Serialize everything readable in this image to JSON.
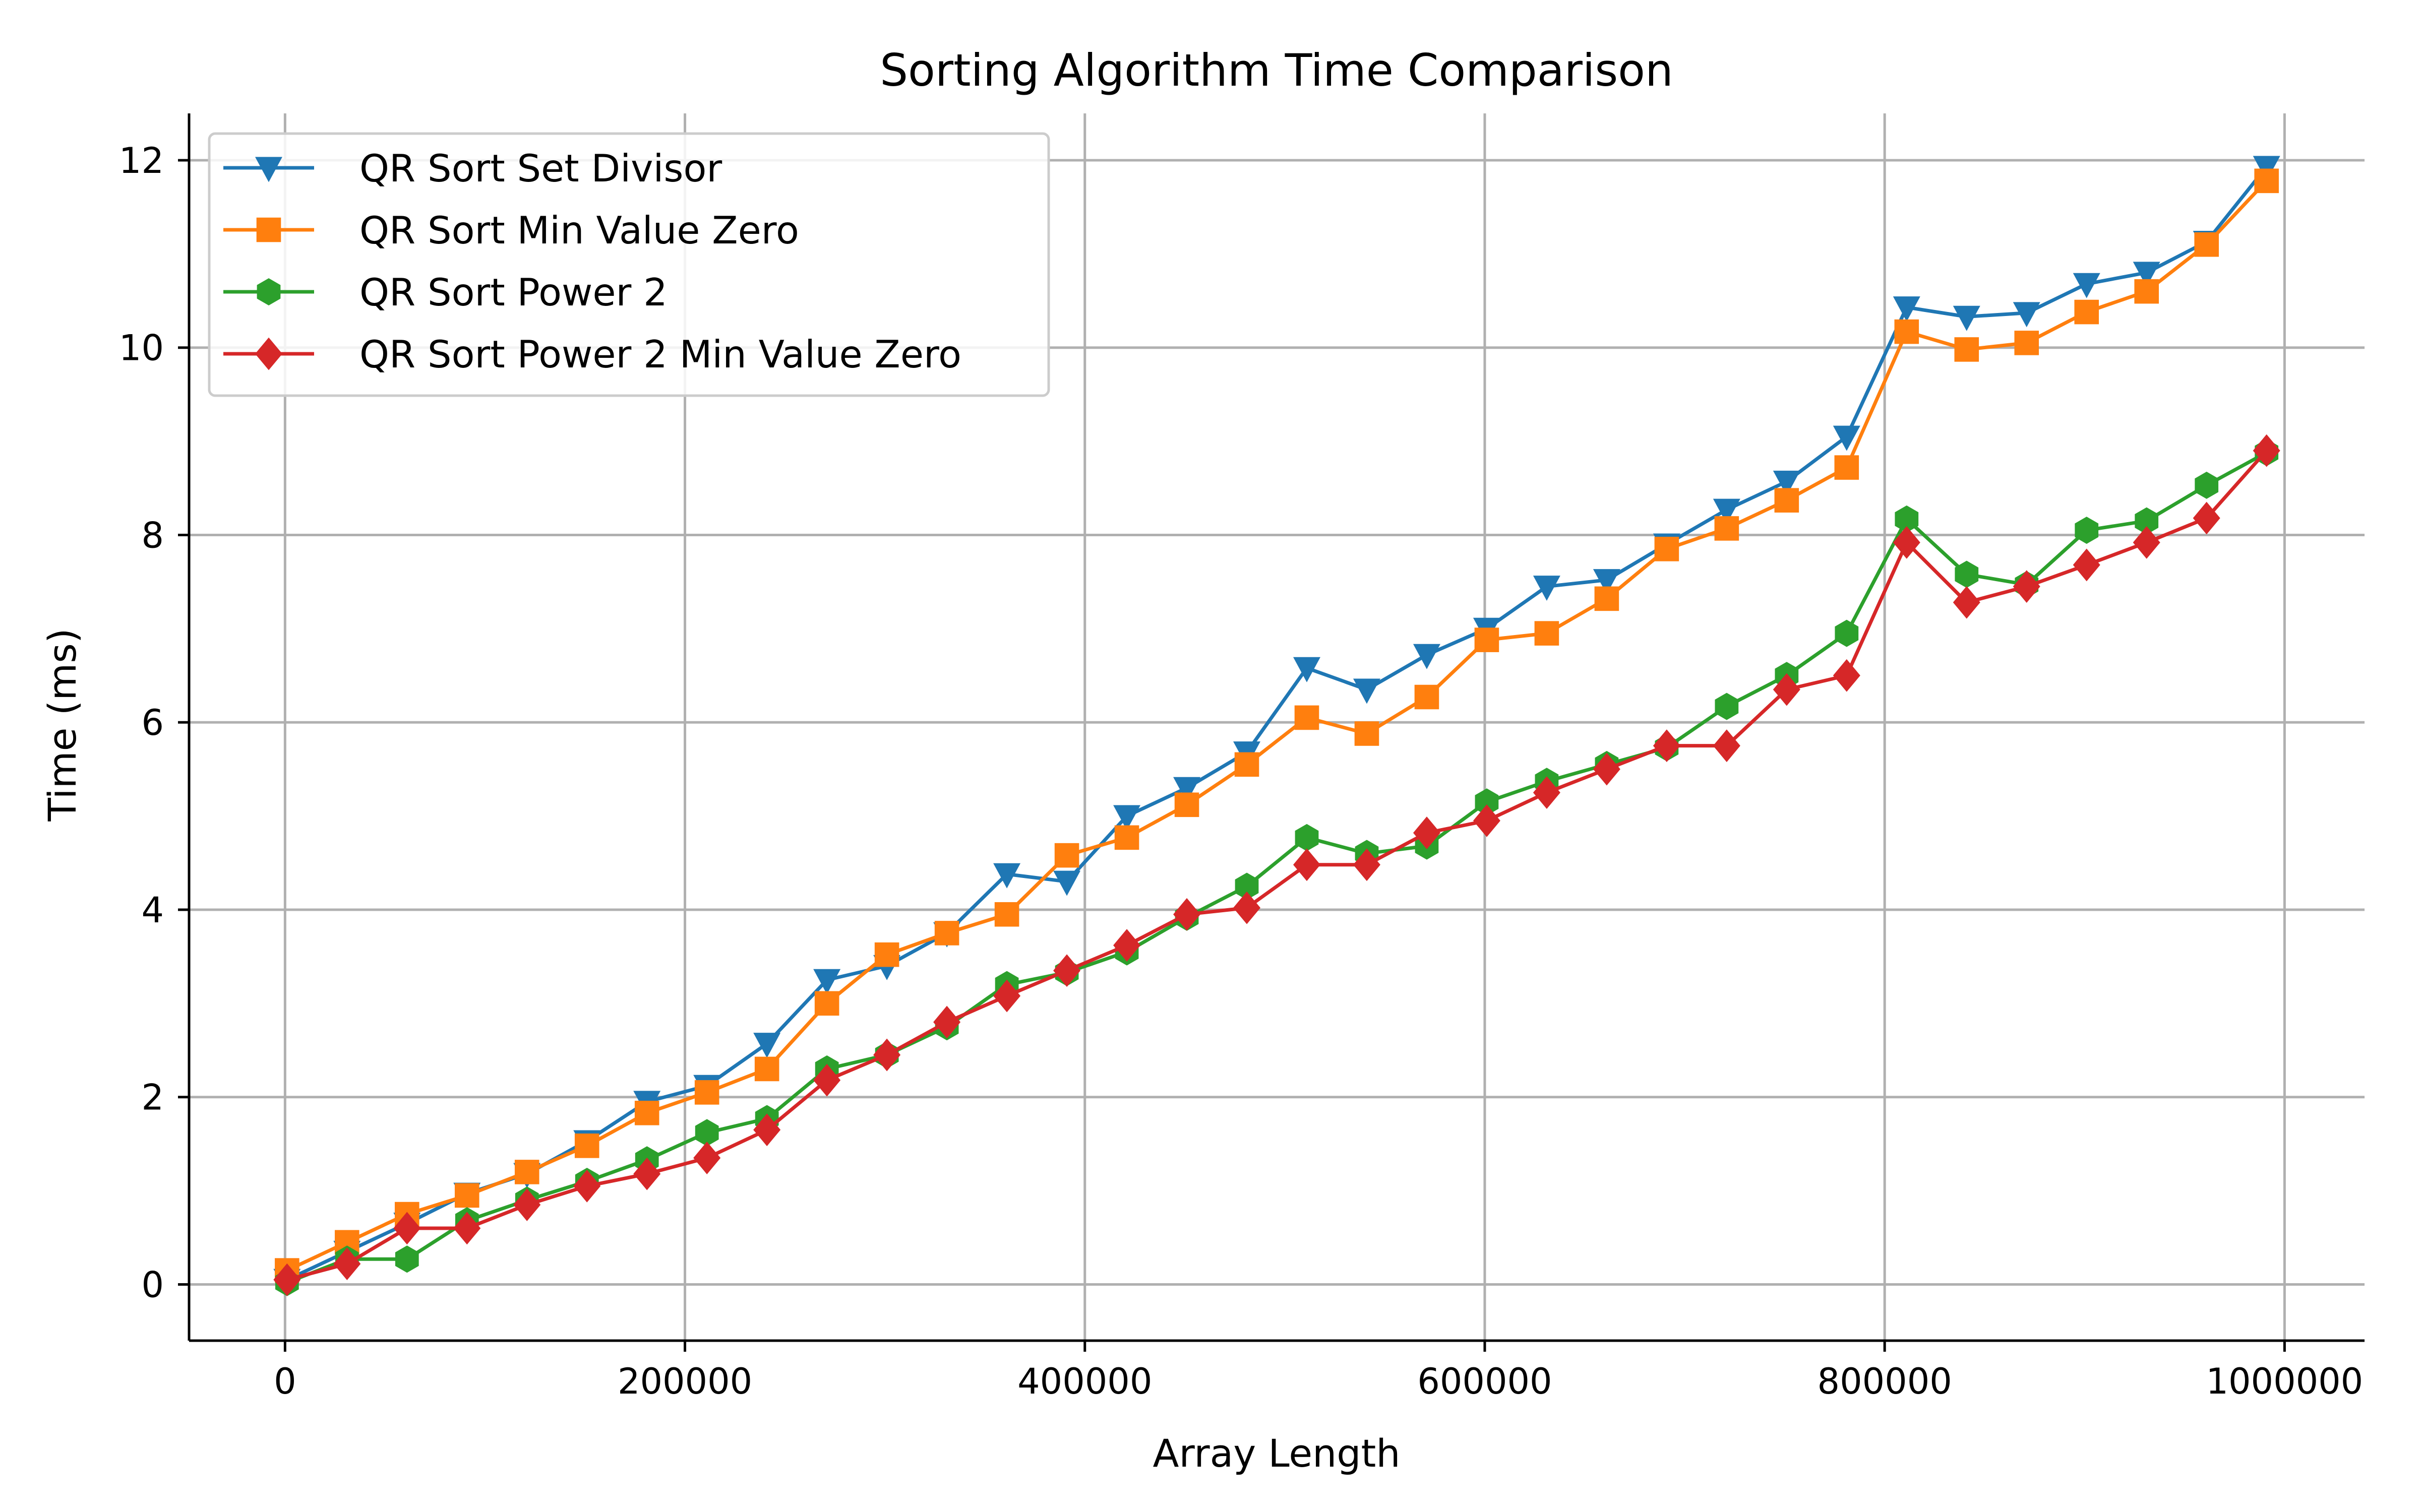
{
  "chart_data": {
    "type": "line",
    "title": "Sorting Algorithm Time Comparison",
    "xlabel": "Array Length",
    "ylabel": "Time (ms)",
    "xlim": [
      -48000,
      1040000
    ],
    "ylim": [
      -0.6,
      12.5
    ],
    "xticks": [
      0,
      200000,
      400000,
      600000,
      800000,
      1000000
    ],
    "xtick_labels": [
      "0",
      "200000",
      "400000",
      "600000",
      "800000",
      "1000000"
    ],
    "yticks": [
      0,
      2,
      4,
      6,
      8,
      10,
      12
    ],
    "ytick_labels": [
      "0",
      "2",
      "4",
      "6",
      "8",
      "10",
      "12"
    ],
    "grid": true,
    "legend_position": "upper-left",
    "x": [
      1000,
      31000,
      61000,
      91000,
      121000,
      151000,
      181000,
      211000,
      241000,
      271000,
      301000,
      331000,
      361000,
      391000,
      421000,
      451000,
      481000,
      511000,
      541000,
      571000,
      601000,
      631000,
      661000,
      691000,
      721000,
      751000,
      781000,
      811000,
      841000,
      871000,
      901000,
      931000,
      961000,
      991000
    ],
    "series": [
      {
        "name": "QR Sort Set Divisor",
        "color": "#1f77b4",
        "marker": "triangle-down",
        "values": [
          0.05,
          0.35,
          0.65,
          0.97,
          1.18,
          1.53,
          1.95,
          2.12,
          2.57,
          3.25,
          3.4,
          3.75,
          4.38,
          4.3,
          5.0,
          5.3,
          5.68,
          6.58,
          6.35,
          6.72,
          7.0,
          7.45,
          7.52,
          7.9,
          8.27,
          8.57,
          9.05,
          10.43,
          10.33,
          10.37,
          10.68,
          10.8,
          11.13,
          11.93
        ]
      },
      {
        "name": "QR Sort Min Value Zero",
        "color": "#ff7f0e",
        "marker": "square",
        "values": [
          0.15,
          0.45,
          0.75,
          0.95,
          1.2,
          1.48,
          1.83,
          2.05,
          2.3,
          3.0,
          3.52,
          3.75,
          3.95,
          4.58,
          4.77,
          5.12,
          5.55,
          6.05,
          5.88,
          6.27,
          6.88,
          6.95,
          7.32,
          7.85,
          8.07,
          8.37,
          8.72,
          10.17,
          9.98,
          10.05,
          10.38,
          10.6,
          11.1,
          11.78
        ]
      },
      {
        "name": "QR Sort Power 2",
        "color": "#2ca02c",
        "marker": "hexagon",
        "values": [
          0.02,
          0.27,
          0.27,
          0.68,
          0.9,
          1.1,
          1.33,
          1.62,
          1.77,
          2.3,
          2.45,
          2.75,
          3.2,
          3.33,
          3.55,
          3.92,
          4.25,
          4.77,
          4.6,
          4.68,
          5.15,
          5.37,
          5.55,
          5.73,
          6.17,
          6.5,
          6.95,
          8.17,
          7.58,
          7.47,
          8.05,
          8.15,
          8.53,
          8.88
        ]
      },
      {
        "name": "QR Sort Power 2 Min Value Zero",
        "color": "#d62728",
        "marker": "diamond",
        "values": [
          0.05,
          0.22,
          0.6,
          0.6,
          0.85,
          1.05,
          1.18,
          1.35,
          1.65,
          2.18,
          2.45,
          2.8,
          3.08,
          3.35,
          3.62,
          3.95,
          4.02,
          4.48,
          4.48,
          4.82,
          4.95,
          5.25,
          5.5,
          5.75,
          5.75,
          6.35,
          6.5,
          7.92,
          7.28,
          7.45,
          7.68,
          7.92,
          8.18,
          8.9
        ]
      }
    ]
  }
}
